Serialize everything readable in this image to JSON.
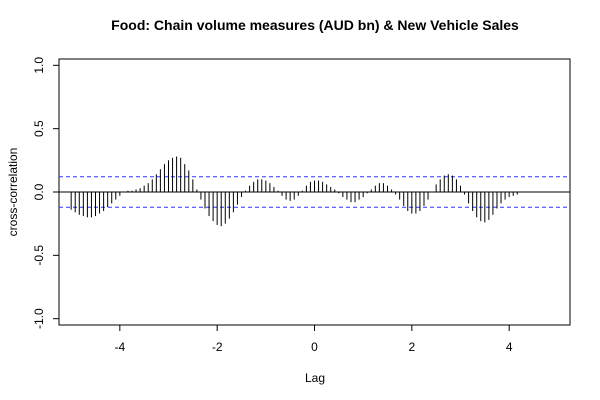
{
  "chart_data": {
    "type": "bar",
    "title": "Food: Chain volume measures (AUD bn) & New Vehicle Sales",
    "xlabel": "Lag",
    "ylabel": "cross-correlation",
    "xlim": [
      -5.25,
      5.25
    ],
    "ylim": [
      -1.05,
      1.05
    ],
    "x_ticks": [
      -4,
      -2,
      0,
      2,
      4
    ],
    "x_tick_labels": [
      "-4",
      "-2",
      "0",
      "2",
      "4"
    ],
    "y_ticks": [
      -1.0,
      -0.5,
      0.0,
      0.5,
      1.0
    ],
    "y_tick_labels": [
      "-1.0",
      "-0.5",
      "0.0",
      "0.5",
      "1.0"
    ],
    "confidence_bound": 0.12,
    "lag_step": 0.08333,
    "lag_start": -5.0,
    "values": [
      -0.14,
      -0.16,
      -0.18,
      -0.19,
      -0.2,
      -0.2,
      -0.19,
      -0.17,
      -0.15,
      -0.12,
      -0.09,
      -0.06,
      -0.03,
      0.0,
      0.01,
      0.01,
      0.02,
      0.03,
      0.05,
      0.07,
      0.1,
      0.14,
      0.18,
      0.22,
      0.25,
      0.27,
      0.28,
      0.27,
      0.22,
      0.17,
      0.1,
      0.02,
      -0.06,
      -0.13,
      -0.19,
      -0.23,
      -0.26,
      -0.27,
      -0.25,
      -0.21,
      -0.16,
      -0.1,
      -0.04,
      0.01,
      0.05,
      0.08,
      0.1,
      0.1,
      0.09,
      0.07,
      0.04,
      0.01,
      -0.03,
      -0.06,
      -0.07,
      -0.06,
      -0.03,
      0.01,
      0.05,
      0.08,
      0.09,
      0.09,
      0.08,
      0.06,
      0.04,
      0.02,
      -0.01,
      -0.04,
      -0.06,
      -0.08,
      -0.08,
      -0.06,
      -0.04,
      -0.01,
      0.02,
      0.05,
      0.07,
      0.07,
      0.05,
      0.02,
      -0.02,
      -0.06,
      -0.11,
      -0.15,
      -0.17,
      -0.17,
      -0.15,
      -0.11,
      -0.06,
      0.0,
      0.06,
      0.1,
      0.13,
      0.14,
      0.13,
      0.1,
      0.05,
      -0.02,
      -0.09,
      -0.15,
      -0.2,
      -0.23,
      -0.24,
      -0.22,
      -0.18,
      -0.13,
      -0.09,
      -0.06,
      -0.04,
      -0.03,
      -0.02
    ],
    "colors": {
      "bars": "#000000",
      "zero_line": "#000000",
      "bounds": "#3333ff",
      "frame": "#000000"
    }
  }
}
